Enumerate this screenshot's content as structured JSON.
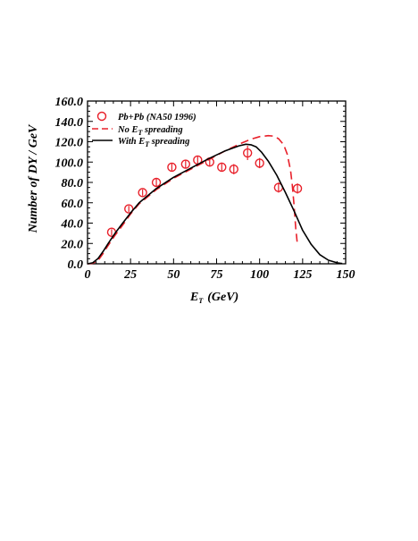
{
  "chart_data": {
    "type": "line",
    "title": "",
    "xlabel": "E",
    "xlabel_sub": "T",
    "xlabel_unit": "(GeV)",
    "ylabel": "Number of DY / GeV",
    "xlim": [
      0,
      150
    ],
    "ylim": [
      0,
      160
    ],
    "x_ticks": [
      0,
      25,
      50,
      75,
      100,
      125,
      150
    ],
    "x_tick_labels": [
      "0",
      "25",
      "50",
      "75",
      "100",
      "125",
      "150"
    ],
    "y_ticks": [
      0,
      20,
      40,
      60,
      80,
      100,
      120,
      140,
      160
    ],
    "y_tick_labels": [
      "0.0",
      "20.0",
      "40.0",
      "60.0",
      "80.0",
      "100.0",
      "120.0",
      "140.0",
      "160.0"
    ],
    "grid": false,
    "legend_position": "top-left",
    "colors": {
      "data": "#e8202a",
      "no_spreading": "#e8202a",
      "with_spreading": "#000000"
    },
    "series": [
      {
        "name": "Pb+Pb  (NA50 1996)",
        "kind": "points",
        "x": [
          14,
          24,
          32,
          40,
          49,
          57,
          64,
          71,
          78,
          85,
          93,
          100,
          111,
          122
        ],
        "y": [
          31,
          54,
          70,
          80,
          95,
          98,
          102,
          100,
          95,
          93,
          109,
          99,
          75,
          74
        ],
        "yerr": [
          3,
          3,
          3,
          3.5,
          3.5,
          4,
          4,
          4,
          4.5,
          5,
          7,
          5,
          5,
          5
        ]
      },
      {
        "name": "No E_T spreading",
        "name_main": "No E",
        "name_sub": "T",
        "name_rest": " spreading",
        "kind": "dashed-line",
        "x": [
          0,
          3,
          6,
          9,
          12,
          16,
          20,
          25,
          30,
          40,
          50,
          60,
          70,
          80,
          90,
          95,
          100,
          105,
          108,
          111,
          114,
          116,
          118,
          119,
          120,
          121,
          122
        ],
        "y": [
          0,
          0.5,
          3,
          10,
          18,
          28,
          37,
          49,
          59,
          73,
          84,
          93,
          102,
          111,
          119,
          122.5,
          125,
          126,
          125.5,
          123,
          117,
          108,
          92,
          77,
          58,
          35,
          18
        ]
      },
      {
        "name": "With E_T spreading",
        "name_main": "With E",
        "name_sub": "T",
        "name_rest": " spreading",
        "kind": "solid-line",
        "x": [
          0,
          3,
          6,
          9,
          12,
          16,
          20,
          25,
          30,
          40,
          50,
          60,
          70,
          80,
          88,
          92,
          95,
          98,
          101,
          105,
          110,
          115,
          120,
          125,
          130,
          135,
          140,
          145,
          148
        ],
        "y": [
          0,
          1,
          5,
          12,
          20,
          30,
          39,
          50,
          60,
          74,
          85,
          94,
          103,
          111,
          116,
          117.5,
          117,
          115,
          110,
          101,
          87,
          70,
          52,
          33,
          19,
          9,
          3.5,
          1,
          0.3
        ]
      }
    ]
  }
}
